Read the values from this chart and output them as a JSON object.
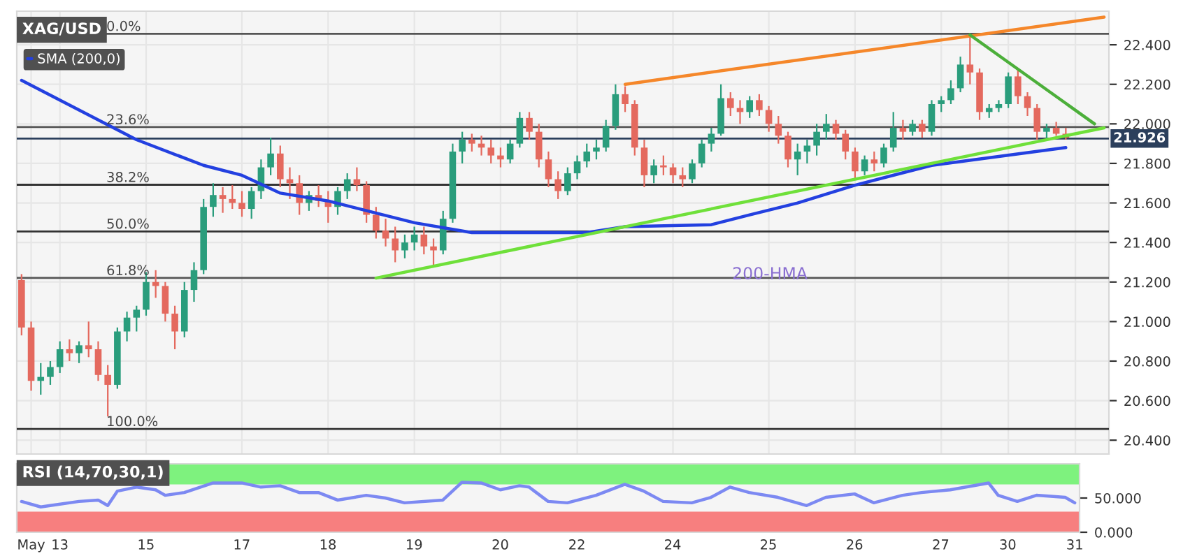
{
  "chart_data": [
    {
      "type": "candlestick",
      "title": "XAG/USD",
      "categories": [
        null,
        "May",
        null,
        null,
        "13",
        null,
        null,
        null,
        null,
        null,
        null,
        null,
        null,
        "15",
        null,
        null,
        null,
        null,
        null,
        null,
        null,
        null,
        null,
        "17",
        null,
        null,
        null,
        null,
        null,
        null,
        null,
        null,
        "18",
        null,
        null,
        null,
        null,
        null,
        null,
        null,
        null,
        "19",
        null,
        null,
        null,
        null,
        null,
        null,
        null,
        null,
        "20",
        null,
        null,
        null,
        null,
        null,
        null,
        null,
        "22",
        null,
        null,
        null,
        null,
        null,
        null,
        null,
        null,
        null,
        "24",
        null,
        null,
        null,
        null,
        null,
        null,
        null,
        null,
        null,
        "25",
        null,
        null,
        null,
        null,
        null,
        null,
        null,
        null,
        "26",
        null,
        null,
        null,
        null,
        null,
        null,
        null,
        null,
        "27",
        null,
        null,
        null,
        null,
        null,
        null,
        "30",
        null,
        null,
        null,
        null,
        null,
        null,
        "31",
        null,
        null,
        null
      ],
      "ohlc": [
        [
          21.21,
          21.24,
          20.93,
          20.97
        ],
        [
          20.97,
          21.0,
          20.65,
          20.7
        ],
        [
          20.7,
          20.79,
          20.63,
          20.72
        ],
        [
          20.72,
          20.8,
          20.68,
          20.77
        ],
        [
          20.77,
          20.9,
          20.74,
          20.86
        ],
        [
          20.86,
          20.91,
          20.8,
          20.84
        ],
        [
          20.84,
          20.9,
          20.79,
          20.88
        ],
        [
          20.88,
          21.0,
          20.82,
          20.86
        ],
        [
          20.86,
          20.9,
          20.7,
          20.73
        ],
        [
          20.73,
          20.78,
          20.52,
          20.68
        ],
        [
          20.68,
          20.97,
          20.66,
          20.95
        ],
        [
          20.95,
          21.05,
          20.9,
          21.02
        ],
        [
          21.02,
          21.08,
          20.95,
          21.06
        ],
        [
          21.06,
          21.25,
          21.03,
          21.2
        ],
        [
          21.2,
          21.26,
          21.12,
          21.18
        ],
        [
          21.18,
          21.2,
          21.0,
          21.04
        ],
        [
          21.04,
          21.08,
          20.86,
          20.95
        ],
        [
          20.95,
          21.2,
          20.92,
          21.16
        ],
        [
          21.16,
          21.3,
          21.1,
          21.26
        ],
        [
          21.26,
          21.62,
          21.24,
          21.58
        ],
        [
          21.58,
          21.7,
          21.53,
          21.64
        ],
        [
          21.64,
          21.68,
          21.55,
          21.62
        ],
        [
          21.62,
          21.69,
          21.57,
          21.6
        ],
        [
          21.6,
          21.66,
          21.53,
          21.57
        ],
        [
          21.57,
          21.68,
          21.52,
          21.66
        ],
        [
          21.66,
          21.82,
          21.62,
          21.78
        ],
        [
          21.78,
          21.93,
          21.74,
          21.85
        ],
        [
          21.85,
          21.89,
          21.68,
          21.72
        ],
        [
          21.72,
          21.78,
          21.62,
          21.7
        ],
        [
          21.7,
          21.74,
          21.54,
          21.6
        ],
        [
          21.6,
          21.66,
          21.56,
          21.64
        ],
        [
          21.64,
          21.69,
          21.58,
          21.61
        ],
        [
          21.61,
          21.66,
          21.5,
          21.58
        ],
        [
          21.58,
          21.68,
          21.54,
          21.66
        ],
        [
          21.66,
          21.75,
          21.62,
          21.72
        ],
        [
          21.72,
          21.78,
          21.66,
          21.69
        ],
        [
          21.69,
          21.71,
          21.5,
          21.54
        ],
        [
          21.54,
          21.58,
          21.42,
          21.46
        ],
        [
          21.46,
          21.52,
          21.38,
          21.42
        ],
        [
          21.42,
          21.48,
          21.3,
          21.36
        ],
        [
          21.36,
          21.44,
          21.32,
          21.4
        ],
        [
          21.4,
          21.48,
          21.36,
          21.44
        ],
        [
          21.44,
          21.48,
          21.34,
          21.38
        ],
        [
          21.38,
          21.42,
          21.28,
          21.36
        ],
        [
          21.36,
          21.56,
          21.34,
          21.52
        ],
        [
          21.52,
          21.9,
          21.5,
          21.86
        ],
        [
          21.86,
          21.96,
          21.8,
          21.92
        ],
        [
          21.92,
          21.95,
          21.86,
          21.9
        ],
        [
          21.9,
          21.94,
          21.84,
          21.88
        ],
        [
          21.88,
          21.92,
          21.8,
          21.84
        ],
        [
          21.84,
          21.88,
          21.78,
          21.82
        ],
        [
          21.82,
          21.92,
          21.8,
          21.9
        ],
        [
          21.9,
          22.06,
          21.88,
          22.03
        ],
        [
          22.03,
          22.06,
          21.92,
          21.96
        ],
        [
          21.96,
          22.0,
          21.78,
          21.82
        ],
        [
          21.82,
          21.86,
          21.68,
          21.72
        ],
        [
          21.72,
          21.76,
          21.62,
          21.66
        ],
        [
          21.66,
          21.78,
          21.64,
          21.75
        ],
        [
          21.75,
          21.84,
          21.72,
          21.81
        ],
        [
          21.81,
          21.9,
          21.78,
          21.86
        ],
        [
          21.86,
          21.92,
          21.82,
          21.88
        ],
        [
          21.88,
          22.02,
          21.86,
          21.99
        ],
        [
          21.99,
          22.2,
          21.97,
          22.15
        ],
        [
          22.15,
          22.19,
          22.06,
          22.1
        ],
        [
          22.1,
          22.12,
          21.84,
          21.88
        ],
        [
          21.88,
          21.92,
          21.68,
          21.74
        ],
        [
          21.74,
          21.82,
          21.7,
          21.79
        ],
        [
          21.79,
          21.84,
          21.74,
          21.78
        ],
        [
          21.78,
          21.8,
          21.7,
          21.74
        ],
        [
          21.74,
          21.78,
          21.68,
          21.72
        ],
        [
          21.72,
          21.82,
          21.7,
          21.8
        ],
        [
          21.8,
          21.92,
          21.78,
          21.9
        ],
        [
          21.9,
          21.98,
          21.86,
          21.95
        ],
        [
          21.95,
          22.2,
          21.94,
          22.13
        ],
        [
          22.13,
          22.16,
          22.04,
          22.08
        ],
        [
          22.08,
          22.12,
          22.0,
          22.06
        ],
        [
          22.06,
          22.14,
          22.03,
          22.12
        ],
        [
          22.12,
          22.15,
          22.04,
          22.07
        ],
        [
          22.07,
          22.09,
          21.96,
          22.0
        ],
        [
          22.0,
          22.04,
          21.9,
          21.94
        ],
        [
          21.94,
          21.96,
          21.78,
          21.82
        ],
        [
          21.82,
          21.9,
          21.74,
          21.86
        ],
        [
          21.86,
          21.92,
          21.8,
          21.89
        ],
        [
          21.89,
          22.0,
          21.84,
          21.96
        ],
        [
          21.96,
          22.05,
          21.92,
          22.0
        ],
        [
          22.0,
          22.02,
          21.92,
          21.95
        ],
        [
          21.95,
          21.97,
          21.82,
          21.86
        ],
        [
          21.86,
          21.88,
          21.72,
          21.76
        ],
        [
          21.76,
          21.84,
          21.74,
          21.82
        ],
        [
          21.82,
          21.86,
          21.76,
          21.8
        ],
        [
          21.8,
          21.9,
          21.78,
          21.88
        ],
        [
          21.88,
          22.06,
          21.86,
          21.98
        ],
        [
          21.98,
          22.02,
          21.92,
          21.96
        ],
        [
          21.96,
          22.02,
          21.94,
          22.0
        ],
        [
          22.0,
          22.02,
          21.93,
          21.96
        ],
        [
          21.96,
          22.12,
          21.94,
          22.1
        ],
        [
          22.1,
          22.14,
          22.06,
          22.12
        ],
        [
          22.12,
          22.22,
          22.1,
          22.18
        ],
        [
          22.18,
          22.34,
          22.16,
          22.3
        ],
        [
          22.3,
          22.44,
          22.2,
          22.26
        ],
        [
          22.26,
          22.28,
          22.02,
          22.06
        ],
        [
          22.06,
          22.1,
          22.03,
          22.08
        ],
        [
          22.08,
          22.12,
          22.06,
          22.1
        ],
        [
          22.1,
          22.26,
          22.08,
          22.24
        ],
        [
          22.24,
          22.28,
          22.1,
          22.14
        ],
        [
          22.14,
          22.16,
          22.04,
          22.08
        ],
        [
          22.08,
          22.1,
          21.92,
          21.96
        ],
        [
          21.96,
          22.0,
          21.92,
          21.98
        ],
        [
          21.98,
          22.01,
          21.94,
          21.95
        ],
        [
          21.95,
          21.98,
          21.92,
          21.93
        ],
        null,
        null,
        null,
        null
      ],
      "series": [
        {
          "type": "line",
          "name": "SMA (200,0)",
          "color": "#2340e0",
          "values": [
            22.22,
            null,
            null,
            null,
            null,
            null,
            null,
            null,
            null,
            null,
            null,
            null,
            21.92,
            null,
            null,
            null,
            null,
            null,
            null,
            21.79,
            null,
            null,
            null,
            21.74,
            null,
            null,
            null,
            21.65,
            null,
            null,
            null,
            null,
            21.61,
            null,
            null,
            null,
            null,
            null,
            null,
            null,
            null,
            21.5,
            null,
            null,
            null,
            null,
            null,
            21.45,
            null,
            null,
            null,
            null,
            null,
            null,
            null,
            null,
            null,
            null,
            null,
            21.45,
            null,
            null,
            null,
            21.48,
            null,
            null,
            null,
            null,
            null,
            null,
            null,
            null,
            21.49,
            null,
            null,
            null,
            21.54,
            null,
            null,
            null,
            null,
            21.6,
            null,
            null,
            null,
            null,
            null,
            21.69,
            null,
            null,
            null,
            null,
            null,
            null,
            null,
            21.79,
            null,
            null,
            null,
            null,
            null,
            null,
            null,
            null,
            null,
            null,
            null,
            null,
            null,
            21.88,
            null,
            null,
            null,
            null
          ]
        },
        {
          "type": "line",
          "color": "#f5872a",
          "values": [
            null,
            null,
            null,
            null,
            null,
            null,
            null,
            null,
            null,
            null,
            null,
            null,
            null,
            null,
            null,
            null,
            null,
            null,
            null,
            null,
            null,
            null,
            null,
            null,
            null,
            null,
            null,
            null,
            null,
            null,
            null,
            null,
            null,
            null,
            null,
            null,
            null,
            null,
            null,
            null,
            null,
            null,
            null,
            null,
            null,
            null,
            null,
            null,
            null,
            null,
            null,
            null,
            null,
            null,
            null,
            null,
            null,
            null,
            null,
            null,
            null,
            null,
            null,
            22.2,
            null,
            null,
            null,
            null,
            null,
            null,
            null,
            null,
            null,
            null,
            null,
            null,
            null,
            null,
            null,
            null,
            null,
            null,
            null,
            null,
            null,
            null,
            null,
            null,
            null,
            null,
            null,
            null,
            null,
            null,
            null,
            null,
            null,
            null,
            null,
            null,
            null,
            null,
            null,
            null,
            null,
            null,
            null,
            null,
            null,
            null,
            null,
            null,
            null,
            22.54
          ]
        },
        {
          "type": "line",
          "color": "#4caf3a",
          "values": [
            null,
            null,
            null,
            null,
            null,
            null,
            null,
            null,
            null,
            null,
            null,
            null,
            null,
            null,
            null,
            null,
            null,
            null,
            null,
            null,
            null,
            null,
            null,
            null,
            null,
            null,
            null,
            null,
            null,
            null,
            null,
            null,
            null,
            null,
            null,
            null,
            null,
            null,
            null,
            null,
            null,
            null,
            null,
            null,
            null,
            null,
            null,
            null,
            null,
            null,
            null,
            null,
            null,
            null,
            null,
            null,
            null,
            null,
            null,
            null,
            null,
            null,
            null,
            null,
            null,
            null,
            null,
            null,
            null,
            null,
            null,
            null,
            null,
            null,
            null,
            null,
            null,
            null,
            null,
            null,
            null,
            null,
            null,
            null,
            null,
            null,
            null,
            null,
            null,
            null,
            null,
            null,
            null,
            null,
            null,
            null,
            null,
            null,
            null,
            22.45,
            null,
            null,
            null,
            null,
            null,
            null,
            null,
            null,
            null,
            null,
            null,
            null,
            22.0,
            null
          ]
        },
        {
          "type": "line",
          "color": "#6fe03a",
          "values": [
            null,
            null,
            null,
            null,
            null,
            null,
            null,
            null,
            null,
            null,
            null,
            null,
            null,
            null,
            null,
            null,
            null,
            null,
            null,
            null,
            null,
            null,
            null,
            null,
            null,
            null,
            null,
            null,
            null,
            null,
            null,
            null,
            null,
            null,
            null,
            null,
            null,
            21.22,
            null,
            null,
            null,
            null,
            null,
            null,
            null,
            null,
            null,
            null,
            null,
            null,
            null,
            null,
            null,
            null,
            null,
            null,
            null,
            null,
            null,
            null,
            null,
            null,
            null,
            null,
            null,
            null,
            null,
            null,
            null,
            null,
            null,
            null,
            null,
            null,
            null,
            null,
            null,
            null,
            null,
            null,
            null,
            null,
            null,
            null,
            null,
            null,
            null,
            null,
            null,
            null,
            null,
            null,
            null,
            null,
            null,
            null,
            null,
            null,
            null,
            null,
            null,
            null,
            null,
            null,
            null,
            null,
            null,
            null,
            null,
            null,
            null,
            null,
            null,
            21.98
          ]
        }
      ],
      "annotations": [
        "200-HMA",
        {
          "text": "0.0%",
          "y": 22.456
        },
        {
          "text": "23.6%",
          "y": 21.984
        },
        {
          "text": "38.2%",
          "y": 21.692
        },
        {
          "text": "50.0%",
          "y": 21.456
        },
        {
          "text": "61.8%",
          "y": 21.221
        },
        {
          "text": "100.0%",
          "y": 20.457
        }
      ],
      "ref_lines": [
        {
          "axis": "y",
          "value": 22.456,
          "color": "#555555"
        },
        {
          "axis": "y",
          "value": 21.984,
          "color": "#555555"
        },
        {
          "axis": "y",
          "value": 21.692,
          "color": "#333333"
        },
        {
          "axis": "y",
          "value": 21.456,
          "color": "#333333"
        },
        {
          "axis": "y",
          "value": 21.221,
          "color": "#555555"
        },
        {
          "axis": "y",
          "value": 20.457,
          "color": "#333333"
        },
        {
          "axis": "y",
          "value": 21.926,
          "label": "21.926",
          "color": "#2b3f5c"
        }
      ],
      "ylim": [
        20.33,
        22.57
      ],
      "yticks": [
        {
          "value": 20.4,
          "label": "20.400"
        },
        {
          "value": 20.6,
          "label": "20.600"
        },
        {
          "value": 20.8,
          "label": "20.800"
        },
        {
          "value": 21.0,
          "label": "21.000"
        },
        {
          "value": 21.2,
          "label": "21.200"
        },
        {
          "value": 21.4,
          "label": "21.400"
        },
        {
          "value": 21.6,
          "label": "21.600"
        },
        {
          "value": 21.8,
          "label": "21.800"
        },
        {
          "value": 22.0,
          "label": "22.000"
        },
        {
          "value": 22.2,
          "label": "22.200"
        },
        {
          "value": 22.4,
          "label": "22.400"
        }
      ],
      "tick_labels": "y",
      "grid": true,
      "legend": "top left"
    },
    {
      "type": "line",
      "title": "RSI (14,70,30,1)",
      "series": [
        {
          "color": "#7c89f2",
          "values": [
            45,
            null,
            37,
            39,
            null,
            null,
            45,
            null,
            47,
            39,
            60,
            null,
            66,
            null,
            62,
            54,
            null,
            58,
            null,
            null,
            72,
            null,
            null,
            72,
            null,
            66,
            null,
            68,
            null,
            58,
            null,
            58,
            null,
            47,
            null,
            null,
            54,
            null,
            50,
            null,
            43,
            null,
            null,
            null,
            47,
            null,
            73,
            null,
            72,
            null,
            62,
            null,
            68,
            66,
            null,
            45,
            null,
            43,
            null,
            null,
            54,
            null,
            null,
            70,
            null,
            60,
            null,
            45,
            null,
            null,
            43,
            null,
            51,
            null,
            66,
            null,
            58,
            null,
            null,
            51,
            null,
            null,
            39,
            null,
            51,
            null,
            null,
            56,
            null,
            43,
            null,
            null,
            54,
            null,
            58,
            null,
            null,
            62,
            null,
            null,
            null,
            72,
            54,
            null,
            45,
            null,
            54,
            null,
            null,
            51,
            43
          ]
        }
      ],
      "bands": [
        {
          "axis": "y",
          "from": 70,
          "to": 100,
          "color": "#7ef27e"
        },
        {
          "axis": "y",
          "from": 0,
          "to": 30,
          "color": "#f77f7f"
        }
      ],
      "ylim": [
        0,
        100
      ],
      "yticks": [
        {
          "value": 0,
          "label": "0.000"
        },
        {
          "value": 50,
          "label": "50.000"
        }
      ]
    }
  ]
}
